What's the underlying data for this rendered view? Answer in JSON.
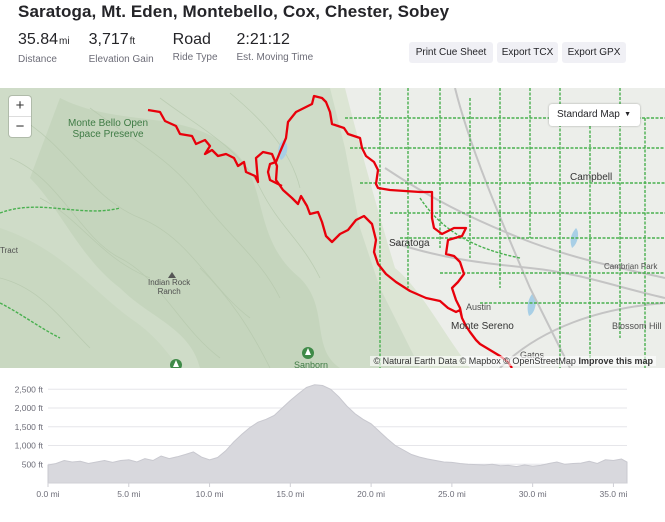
{
  "route": {
    "title": "Saratoga, Mt. Eden, Montebello, Cox, Chester, Sobey",
    "stats": [
      {
        "value": "35.84",
        "unit": "mi",
        "label": "Distance"
      },
      {
        "value": "3,717",
        "unit": "ft",
        "label": "Elevation Gain"
      },
      {
        "value": "Road",
        "unit": "",
        "label": "Ride Type"
      },
      {
        "value": "2:21:12",
        "unit": "",
        "label": "Est. Moving Time"
      }
    ]
  },
  "actions": {
    "print_cue_sheet": "Print Cue Sheet",
    "export_tcx": "Export TCX",
    "export_gpx": "Export GPX"
  },
  "map": {
    "zoom_in": "+",
    "zoom_out": "−",
    "style_selector": "Standard Map",
    "labels": {
      "monte_bello_1": "Monte Bello Open",
      "monte_bello_2": "Space Preserve",
      "campbell": "Campbell",
      "saratoga": "Saratoga",
      "tract": "Tract",
      "indian_rock_1": "Indian Rock",
      "indian_rock_2": "Ranch",
      "cambrian_park": "Cambrian Park",
      "austin": "Austin",
      "monte_sereno": "Monte Sereno",
      "blossom_hill": "Blossom Hill",
      "los_gatos": "Gatos",
      "sanborn": "Sanborn"
    },
    "attribution": "© Natural Earth Data © Mapbox © OpenStreetMap",
    "improve": "Improve this map",
    "colors": {
      "route": "#e8000b",
      "bike_lanes": "#49b04f",
      "terrain": "#dfe6d8"
    }
  },
  "elevation_chart": {
    "type": "area",
    "y_ticks": [
      "500 ft",
      "1,000 ft",
      "1,500 ft",
      "2,000 ft",
      "2,500 ft"
    ],
    "x_ticks": [
      "0.0 mi",
      "5.0 mi",
      "10.0 mi",
      "15.0 mi",
      "20.0 mi",
      "25.0 mi",
      "30.0 mi",
      "35.0 mi"
    ],
    "xlim": [
      0,
      35.84
    ],
    "ylim": [
      0,
      2800
    ],
    "x": [
      0,
      0.5,
      1,
      1.5,
      2,
      2.5,
      3,
      3.5,
      4,
      4.5,
      5,
      5.5,
      6,
      6.5,
      7,
      7.5,
      8,
      8.5,
      9,
      9.5,
      10,
      10.5,
      11,
      11.5,
      12,
      12.5,
      13,
      13.5,
      14,
      14.5,
      15,
      15.5,
      16,
      16.5,
      17,
      17.5,
      18,
      18.5,
      19,
      19.5,
      20,
      20.5,
      21,
      21.5,
      22,
      22.5,
      23,
      23.5,
      24,
      24.5,
      25,
      25.5,
      26,
      26.5,
      27,
      27.5,
      28,
      28.5,
      29,
      29.5,
      30,
      30.5,
      31,
      31.5,
      32,
      32.5,
      33,
      33.5,
      34,
      34.5,
      35,
      35.5,
      35.84
    ],
    "y": [
      480,
      520,
      600,
      560,
      580,
      520,
      560,
      600,
      550,
      600,
      620,
      560,
      650,
      600,
      720,
      650,
      700,
      760,
      830,
      690,
      620,
      680,
      860,
      1100,
      1300,
      1480,
      1620,
      1700,
      1800,
      2000,
      2200,
      2380,
      2550,
      2620,
      2600,
      2500,
      2300,
      2050,
      1850,
      1700,
      1580,
      1380,
      1180,
      1000,
      880,
      760,
      690,
      640,
      600,
      560,
      550,
      520,
      500,
      490,
      480,
      500,
      460,
      470,
      440,
      480,
      450,
      470,
      520,
      560,
      500,
      520,
      530,
      580,
      520,
      620,
      600,
      640,
      560
    ]
  }
}
